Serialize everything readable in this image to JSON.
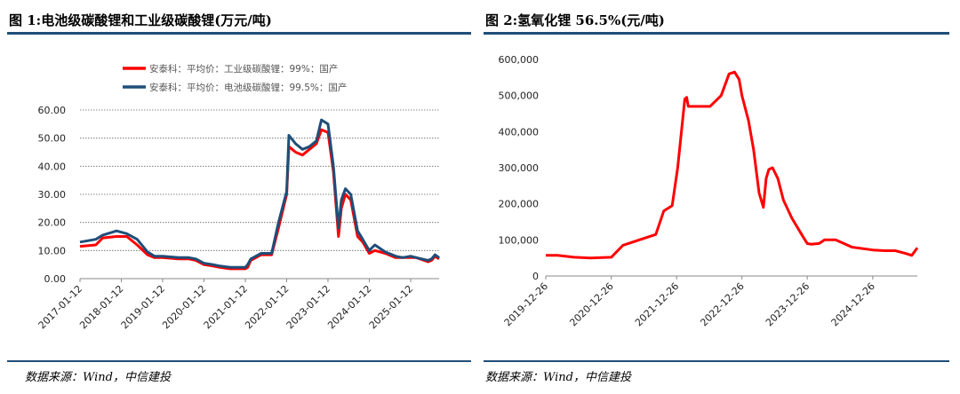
{
  "charts": [
    {
      "title": "图 1:电池级碳酸锂和工业级碳酸锂(万元/吨)",
      "source": "数据来源：Wind，中信建投",
      "chart_data": {
        "type": "line",
        "ylim": [
          0,
          60
        ],
        "yticks": [
          "0.00",
          "10.00",
          "20.00",
          "30.00",
          "40.00",
          "50.00",
          "60.00"
        ],
        "yticks_values": [
          0,
          10,
          20,
          30,
          40,
          50,
          60
        ],
        "xlim": [
          "2017-01-12",
          "2025-09-20"
        ],
        "xticks": [
          "2017-01-12",
          "2018-01-12",
          "2019-01-12",
          "2020-01-12",
          "2021-01-12",
          "2022-01-12",
          "2023-01-12",
          "2024-01-12",
          "2025-01-12"
        ],
        "grid": true,
        "legend_position": "top",
        "series": [
          {
            "name": "安泰科：平均价：工业级碳酸锂：99%：国产",
            "color": "#ff0000",
            "x": [
              "2017-01-12",
              "2017-06-01",
              "2017-08-01",
              "2017-12-01",
              "2018-03-01",
              "2018-06-01",
              "2018-09-01",
              "2018-11-01",
              "2019-01-12",
              "2019-06-01",
              "2019-09-01",
              "2019-11-01",
              "2020-01-12",
              "2020-04-01",
              "2020-06-01",
              "2020-09-01",
              "2020-11-01",
              "2021-01-12",
              "2021-02-01",
              "2021-03-01",
              "2021-06-01",
              "2021-09-01",
              "2021-11-01",
              "2022-01-12",
              "2022-02-01",
              "2022-04-01",
              "2022-06-01",
              "2022-08-01",
              "2022-10-01",
              "2022-11-15",
              "2023-01-12",
              "2023-03-01",
              "2023-04-15",
              "2023-05-10",
              "2023-06-15",
              "2023-08-01",
              "2023-10-01",
              "2023-11-15",
              "2024-01-12",
              "2024-03-01",
              "2024-06-01",
              "2024-09-01",
              "2024-11-01",
              "2025-01-12",
              "2025-03-01",
              "2025-06-15",
              "2025-07-15",
              "2025-08-15",
              "2025-09-20"
            ],
            "values": [
              11.5,
              12.0,
              14.5,
              15.0,
              15.0,
              12.0,
              8.5,
              7.5,
              7.5,
              7.0,
              7.0,
              6.5,
              5.0,
              4.5,
              4.0,
              3.5,
              3.5,
              3.5,
              4.0,
              6.5,
              8.5,
              8.5,
              18.0,
              30.0,
              47.0,
              45.0,
              44.0,
              46.0,
              48.0,
              53.0,
              52.0,
              38.0,
              15.0,
              25.0,
              30.0,
              28.0,
              15.0,
              13.0,
              9.0,
              10.0,
              9.0,
              7.5,
              7.5,
              7.5,
              7.5,
              6.0,
              6.5,
              8.0,
              7.0
            ]
          },
          {
            "name": "安泰科：平均价：电池级碳酸锂：99.5%：国产",
            "color": "#1f4e79",
            "x": [
              "2017-01-12",
              "2017-06-01",
              "2017-08-01",
              "2017-12-01",
              "2018-03-01",
              "2018-06-01",
              "2018-09-01",
              "2018-11-01",
              "2019-01-12",
              "2019-06-01",
              "2019-09-01",
              "2019-11-01",
              "2020-01-12",
              "2020-04-01",
              "2020-06-01",
              "2020-09-01",
              "2020-11-01",
              "2021-01-12",
              "2021-02-01",
              "2021-03-01",
              "2021-06-01",
              "2021-09-01",
              "2021-11-01",
              "2022-01-12",
              "2022-02-01",
              "2022-04-01",
              "2022-06-01",
              "2022-08-01",
              "2022-10-01",
              "2022-11-15",
              "2023-01-12",
              "2023-03-01",
              "2023-04-15",
              "2023-05-10",
              "2023-06-15",
              "2023-08-01",
              "2023-10-01",
              "2023-11-15",
              "2024-01-12",
              "2024-03-01",
              "2024-06-01",
              "2024-09-01",
              "2024-11-01",
              "2025-01-12",
              "2025-03-01",
              "2025-06-15",
              "2025-07-15",
              "2025-08-15",
              "2025-09-20"
            ],
            "values": [
              13.0,
              14.0,
              15.5,
              17.0,
              16.0,
              14.0,
              9.5,
              8.0,
              8.0,
              7.5,
              7.5,
              7.0,
              5.5,
              5.0,
              4.5,
              4.0,
              4.0,
              4.0,
              5.0,
              7.0,
              9.0,
              9.0,
              20.0,
              31.0,
              51.0,
              48.0,
              46.0,
              47.0,
              49.0,
              56.5,
              55.0,
              40.0,
              18.0,
              28.0,
              32.0,
              30.0,
              17.0,
              14.0,
              10.0,
              12.0,
              9.5,
              8.0,
              7.5,
              8.0,
              7.5,
              6.5,
              7.0,
              8.5,
              7.5
            ]
          }
        ]
      }
    },
    {
      "title": "图 2:氢氧化锂 56.5%(元/吨)",
      "source": "数据来源：Wind，中信建投",
      "chart_data": {
        "type": "line",
        "ylim": [
          0,
          600000
        ],
        "yticks": [
          "0",
          "100,000",
          "200,000",
          "300,000",
          "400,000",
          "500,000",
          "600,000"
        ],
        "yticks_values": [
          0,
          100000,
          200000,
          300000,
          400000,
          500000,
          600000
        ],
        "xlim": [
          "2019-12-26",
          "2025-09-01"
        ],
        "xticks": [
          "2019-12-26",
          "2020-12-26",
          "2021-12-26",
          "2022-12-26",
          "2023-12-26",
          "2024-12-26"
        ],
        "grid": false,
        "series": [
          {
            "color": "#ff0000",
            "x": [
              "2019-12-26",
              "2020-03-01",
              "2020-06-01",
              "2020-09-01",
              "2020-12-26",
              "2021-03-01",
              "2021-06-01",
              "2021-09-01",
              "2021-10-15",
              "2021-12-01",
              "2022-01-01",
              "2022-02-10",
              "2022-02-20",
              "2022-03-01",
              "2022-03-20",
              "2022-05-01",
              "2022-07-01",
              "2022-09-01",
              "2022-10-15",
              "2022-11-15",
              "2022-12-10",
              "2022-12-26",
              "2023-02-01",
              "2023-03-01",
              "2023-04-01",
              "2023-04-25",
              "2023-05-10",
              "2023-05-25",
              "2023-06-15",
              "2023-07-15",
              "2023-08-15",
              "2023-10-01",
              "2023-12-01",
              "2023-12-26",
              "2024-01-15",
              "2024-03-01",
              "2024-04-01",
              "2024-06-01",
              "2024-09-01",
              "2024-12-26",
              "2025-03-01",
              "2025-05-01",
              "2025-07-01",
              "2025-08-01",
              "2025-09-01"
            ],
            "values": [
              57000,
              57000,
              52000,
              50000,
              52000,
              85000,
              100000,
              115000,
              180000,
              195000,
              300000,
              490000,
              495000,
              470000,
              470000,
              470000,
              470000,
              500000,
              560000,
              565000,
              545000,
              500000,
              430000,
              350000,
              230000,
              190000,
              270000,
              295000,
              300000,
              270000,
              210000,
              160000,
              110000,
              90000,
              88000,
              90000,
              100000,
              100000,
              80000,
              72000,
              70000,
              70000,
              62000,
              57000,
              78000
            ]
          }
        ]
      }
    }
  ]
}
